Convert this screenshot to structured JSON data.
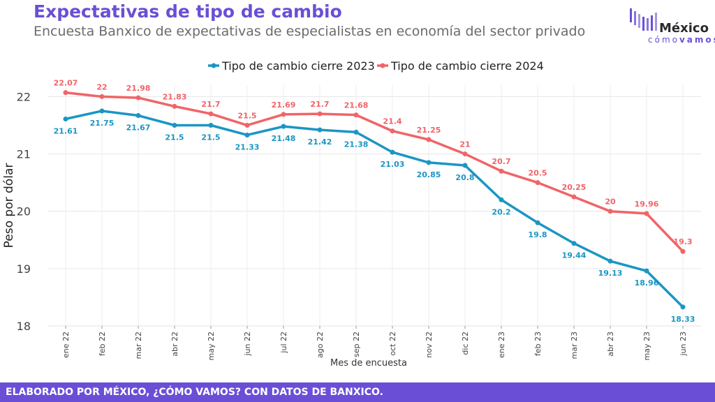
{
  "header": {
    "title": "Expectativas de tipo de cambio",
    "subtitle": "Encuesta Banxico de expectativas de especialistas en economía del sector privado"
  },
  "logo": {
    "name": "México",
    "tag_light": "cómo",
    "tag_bold": "vamos"
  },
  "footer": {
    "text": "ELABORADO POR MÉXICO, ¿CÓMO VAMOS? CON DATOS DE BANXICO."
  },
  "chart_data": {
    "type": "line",
    "xlabel": "Mes de encuesta",
    "ylabel": "Peso por dólar",
    "ylim": [
      18,
      22.2
    ],
    "yticks": [
      18,
      19,
      20,
      21,
      22
    ],
    "grid": true,
    "legend_position": "top",
    "categories": [
      "ene 22",
      "feb 22",
      "mar 22",
      "abr 22",
      "may 22",
      "jun 22",
      "jul 22",
      "ago 22",
      "sep 22",
      "oct 22",
      "nov 22",
      "dic 22",
      "ene 23",
      "feb 23",
      "mar 23",
      "abr 23",
      "may 23",
      "jun 23"
    ],
    "series": [
      {
        "name": "Tipo de cambio cierre 2023",
        "color": "#1a96c4",
        "values": [
          21.61,
          21.75,
          21.67,
          21.5,
          21.5,
          21.33,
          21.48,
          21.42,
          21.38,
          21.03,
          20.85,
          20.8,
          20.2,
          19.8,
          19.44,
          19.13,
          18.96,
          18.33
        ],
        "labels": [
          "21.61",
          "21.75",
          "21.67",
          "21.5",
          "21.5",
          "21.33",
          "21.48",
          "21.42",
          "21.38",
          "21.03",
          "20.85",
          "20.8",
          "20.2",
          "19.8",
          "19.44",
          "19.13",
          "18.96",
          "18.33"
        ]
      },
      {
        "name": "Tipo de cambio cierre 2024",
        "color": "#f06468",
        "values": [
          22.07,
          22,
          21.98,
          21.83,
          21.7,
          21.5,
          21.69,
          21.7,
          21.68,
          21.4,
          21.25,
          21,
          20.7,
          20.5,
          20.25,
          20,
          19.96,
          19.3
        ],
        "labels": [
          "22.07",
          "22",
          "21.98",
          "21.83",
          "21.7",
          "21.5",
          "21.69",
          "21.7",
          "21.68",
          "21.4",
          "21.25",
          "21",
          "20.7",
          "20.5",
          "20.25",
          "20",
          "19.96",
          "19.3"
        ]
      }
    ]
  }
}
